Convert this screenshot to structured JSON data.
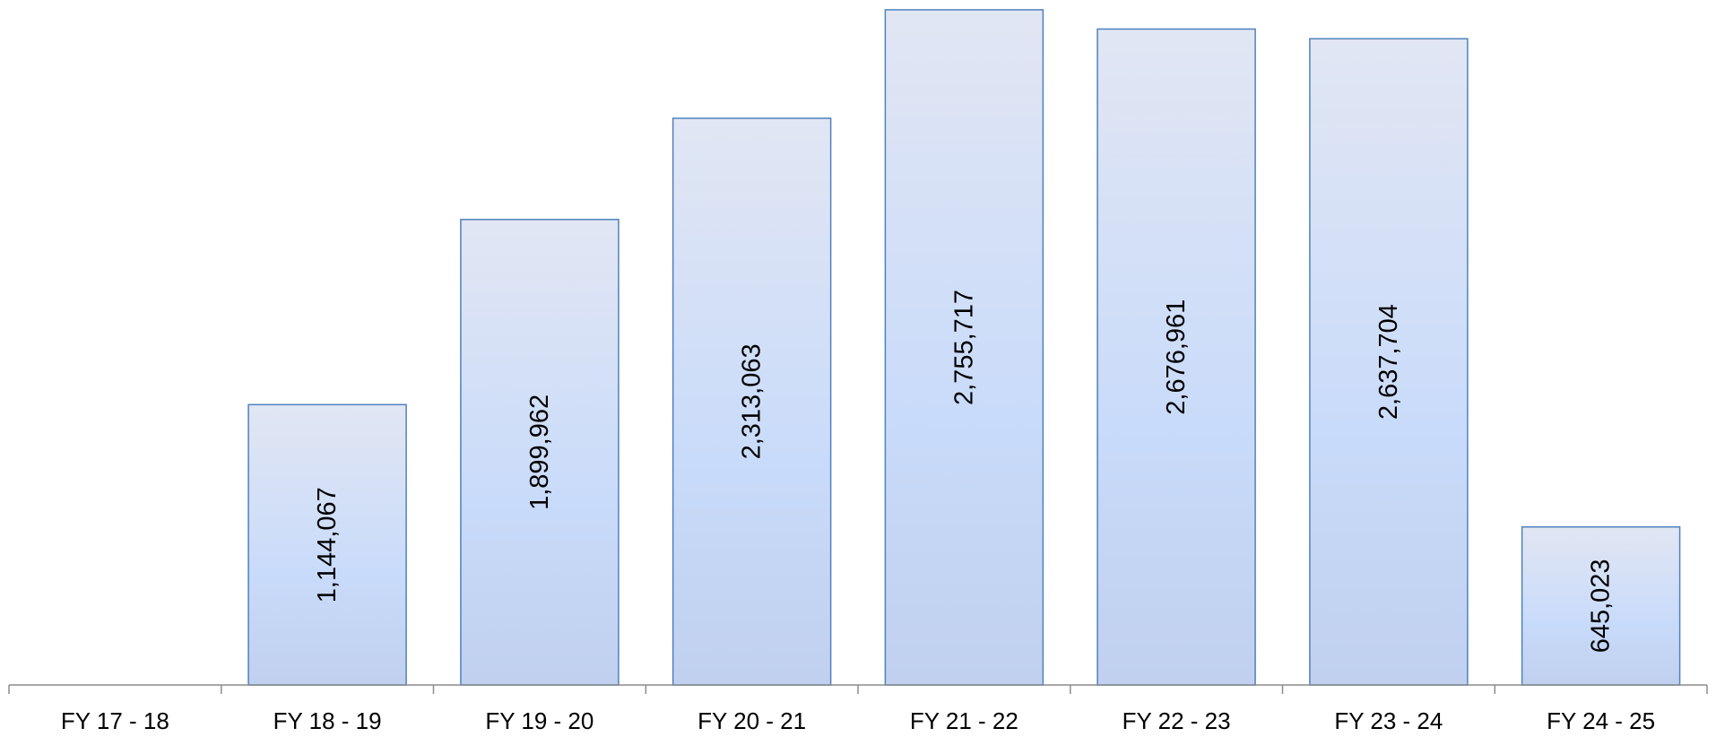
{
  "chart_data": {
    "type": "bar",
    "title": "",
    "xlabel": "",
    "ylabel": "",
    "categories": [
      "FY 17 - 18",
      "FY 18 - 19",
      "FY 19 - 20",
      "FY 20 - 21",
      "FY 21 - 22",
      "FY 22 - 23",
      "FY 23 - 24",
      "FY 24 - 25"
    ],
    "values": [
      null,
      1144067,
      1899962,
      2313063,
      2755717,
      2676961,
      2637704,
      645023
    ],
    "value_labels": [
      "",
      "1,144,067",
      "1,899,962",
      "2,313,063",
      "2,755,717",
      "2,676,961",
      "2,637,704",
      "645,023"
    ],
    "ylim": [
      0,
      2770000
    ],
    "grid": false,
    "legend": "none",
    "colors": {
      "bar_top": "#e1e6f3",
      "bar_mid": "#c9dbfa",
      "bar_bottom": "#c0d0ee",
      "bar_border": "#4f81bd",
      "axis": "#8c8c8c"
    }
  }
}
